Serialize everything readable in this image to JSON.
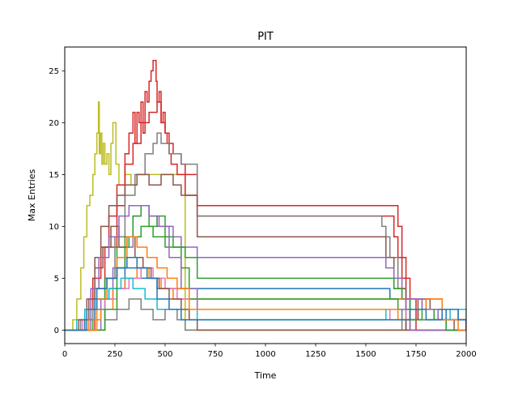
{
  "chart_data": {
    "type": "line",
    "step": "post",
    "title": "PIT",
    "xlabel": "Time",
    "ylabel": "Max Entries",
    "xlim": [
      0,
      2000
    ],
    "ylim": [
      -1.3,
      27.3
    ],
    "xticks": [
      0,
      250,
      500,
      750,
      1000,
      1250,
      1500,
      1750,
      2000
    ],
    "yticks": [
      0,
      5,
      10,
      15,
      20,
      25
    ],
    "grid": false,
    "legend": "none",
    "series": [
      {
        "color": "#bcbd22",
        "x": [
          0,
          40,
          60,
          80,
          95,
          110,
          125,
          140,
          150,
          160,
          168,
          172,
          178,
          185,
          192,
          200,
          210,
          220,
          230,
          240,
          255,
          270,
          300,
          330,
          360,
          400,
          460,
          520,
          560,
          600,
          2000
        ],
        "y": [
          0,
          1,
          3,
          6,
          9,
          12,
          13,
          15,
          17,
          19,
          22,
          17,
          19,
          16,
          18,
          16,
          17,
          15,
          18,
          20,
          16,
          14,
          15,
          14,
          15,
          15,
          15,
          15,
          15,
          0,
          0
        ]
      },
      {
        "color": "#d62728",
        "x": [
          0,
          100,
          140,
          180,
          220,
          260,
          300,
          320,
          340,
          350,
          360,
          370,
          380,
          390,
          400,
          410,
          420,
          430,
          440,
          445,
          455,
          460,
          470,
          480,
          490,
          500,
          510,
          520,
          530,
          560,
          600,
          660,
          1640,
          1660,
          1680,
          1700,
          1750,
          2000
        ],
        "y": [
          0,
          2,
          5,
          8,
          11,
          14,
          17,
          19,
          21,
          18,
          21,
          20,
          22,
          19,
          23,
          22,
          24,
          25,
          26,
          26,
          24,
          22,
          23,
          20,
          21,
          19,
          18,
          17,
          16,
          15,
          13,
          12,
          12,
          10,
          7,
          3,
          0,
          0
        ]
      },
      {
        "color": "#d62728",
        "x": [
          0,
          150,
          200,
          260,
          300,
          340,
          380,
          420,
          460,
          480,
          500,
          520,
          540,
          580,
          600,
          660,
          1620,
          1640,
          1660,
          1680,
          1720,
          2000
        ],
        "y": [
          0,
          4,
          8,
          12,
          16,
          18,
          20,
          21,
          22,
          20,
          19,
          18,
          17,
          16,
          15,
          11,
          11,
          9,
          7,
          5,
          0,
          0
        ]
      },
      {
        "color": "#7f7f7f",
        "x": [
          0,
          200,
          250,
          300,
          350,
          400,
          440,
          460,
          480,
          520,
          580,
          660,
          1560,
          1580,
          1600,
          1620,
          1660,
          1700,
          2000
        ],
        "y": [
          0,
          5,
          9,
          13,
          15,
          17,
          18,
          19,
          18,
          17,
          16,
          11,
          11,
          10,
          9,
          7,
          4,
          0,
          0
        ]
      },
      {
        "color": "#8c564b",
        "x": [
          0,
          120,
          150,
          180,
          220,
          260,
          300,
          360,
          420,
          480,
          540,
          580,
          600,
          660,
          1560,
          1600,
          1640,
          1700,
          2000
        ],
        "y": [
          0,
          3,
          7,
          10,
          12,
          13,
          14,
          15,
          14,
          15,
          14,
          13,
          13,
          9,
          9,
          7,
          4,
          0,
          0
        ]
      },
      {
        "color": "#9467bd",
        "x": [
          0,
          180,
          240,
          300,
          340,
          380,
          420,
          460,
          500,
          540,
          580,
          660,
          1560,
          1600,
          1640,
          1680,
          1720,
          2000
        ],
        "y": [
          0,
          3,
          6,
          8,
          11,
          12,
          11,
          10,
          10,
          9,
          8,
          7,
          7,
          6,
          5,
          3,
          0,
          0
        ]
      },
      {
        "color": "#2ca02c",
        "x": [
          0,
          140,
          200,
          260,
          320,
          380,
          440,
          500,
          560,
          600,
          660,
          1600,
          1640,
          1680,
          1720,
          2000
        ],
        "y": [
          0,
          2,
          5,
          8,
          9,
          10,
          9,
          8,
          8,
          7,
          5,
          5,
          4,
          3,
          1,
          0
        ]
      },
      {
        "color": "#1f77b4",
        "x": [
          0,
          100,
          150,
          220,
          300,
          380,
          460,
          540,
          600,
          660,
          1560,
          1620,
          1700,
          1800,
          1900,
          2000
        ],
        "y": [
          0,
          1,
          3,
          4,
          6,
          5,
          4,
          4,
          4,
          4,
          4,
          3,
          2,
          2,
          0,
          0
        ]
      },
      {
        "color": "#ff7f0e",
        "x": [
          0,
          120,
          180,
          240,
          300,
          360,
          420,
          480,
          540,
          600,
          660,
          1560,
          1620,
          1700,
          1800,
          1880,
          2000
        ],
        "y": [
          0,
          1,
          2,
          4,
          5,
          6,
          5,
          4,
          3,
          3,
          3,
          3,
          3,
          2,
          3,
          1,
          0
        ]
      },
      {
        "color": "#e377c2",
        "x": [
          0,
          90,
          140,
          200,
          260,
          320,
          380,
          440,
          500,
          560,
          620,
          1540,
          1620,
          1700,
          1780,
          1860,
          1940,
          2000
        ],
        "y": [
          0,
          1,
          2,
          3,
          4,
          5,
          6,
          5,
          4,
          3,
          2,
          2,
          1,
          3,
          2,
          1,
          1,
          0
        ]
      },
      {
        "color": "#17becf",
        "x": [
          0,
          60,
          100,
          160,
          220,
          280,
          340,
          400,
          460,
          520,
          580,
          660,
          1540,
          1600,
          1680,
          1760,
          1840,
          1920,
          2000
        ],
        "y": [
          0,
          1,
          2,
          3,
          4,
          5,
          4,
          3,
          2,
          2,
          2,
          1,
          1,
          2,
          1,
          2,
          1,
          2,
          0
        ]
      },
      {
        "color": "#7f7f7f",
        "x": [
          0,
          80,
          140,
          200,
          260,
          320,
          380,
          440,
          500,
          560,
          600,
          1580,
          1680,
          1760,
          1860,
          1960,
          2000
        ],
        "y": [
          0,
          1,
          2,
          1,
          2,
          3,
          2,
          1,
          2,
          1,
          0,
          0,
          2,
          1,
          2,
          1,
          0
        ]
      },
      {
        "color": "#8c564b",
        "x": [
          0,
          70,
          110,
          150,
          190,
          230,
          270,
          310,
          350,
          390,
          430,
          470,
          520,
          580,
          620,
          660,
          1640,
          1700,
          1760,
          1820,
          1880,
          1940,
          2000
        ],
        "y": [
          0,
          1,
          3,
          6,
          8,
          10,
          8,
          9,
          7,
          6,
          5,
          4,
          3,
          2,
          1,
          0,
          0,
          1,
          3,
          2,
          1,
          0,
          0
        ]
      },
      {
        "color": "#2ca02c",
        "x": [
          0,
          200,
          260,
          300,
          340,
          380,
          420,
          460,
          500,
          540,
          580,
          620,
          1600,
          1660,
          1720,
          1780,
          1840,
          1900,
          2000
        ],
        "y": [
          0,
          2,
          6,
          9,
          11,
          12,
          10,
          11,
          9,
          8,
          6,
          3,
          3,
          2,
          1,
          2,
          1,
          0,
          0
        ]
      },
      {
        "color": "#9467bd",
        "x": [
          0,
          130,
          170,
          220,
          270,
          320,
          370,
          420,
          470,
          520,
          580,
          660,
          1620,
          1700,
          1780,
          1860,
          2000
        ],
        "y": [
          0,
          4,
          7,
          9,
          11,
          12,
          12,
          11,
          10,
          7,
          4,
          2,
          2,
          3,
          2,
          1,
          0
        ]
      },
      {
        "color": "#ff7f0e",
        "x": [
          0,
          160,
          210,
          260,
          310,
          360,
          410,
          460,
          510,
          560,
          620,
          1600,
          1660,
          1720,
          1800,
          1880,
          1960,
          2000
        ],
        "y": [
          0,
          3,
          5,
          7,
          9,
          8,
          7,
          6,
          5,
          4,
          2,
          2,
          1,
          2,
          3,
          1,
          0,
          0
        ]
      },
      {
        "color": "#1f77b4",
        "x": [
          0,
          110,
          160,
          210,
          260,
          310,
          360,
          410,
          460,
          520,
          580,
          1640,
          1720,
          1800,
          1880,
          1960,
          2000
        ],
        "y": [
          0,
          2,
          4,
          5,
          6,
          7,
          6,
          5,
          3,
          2,
          1,
          1,
          2,
          1,
          2,
          1,
          0
        ]
      }
    ]
  }
}
